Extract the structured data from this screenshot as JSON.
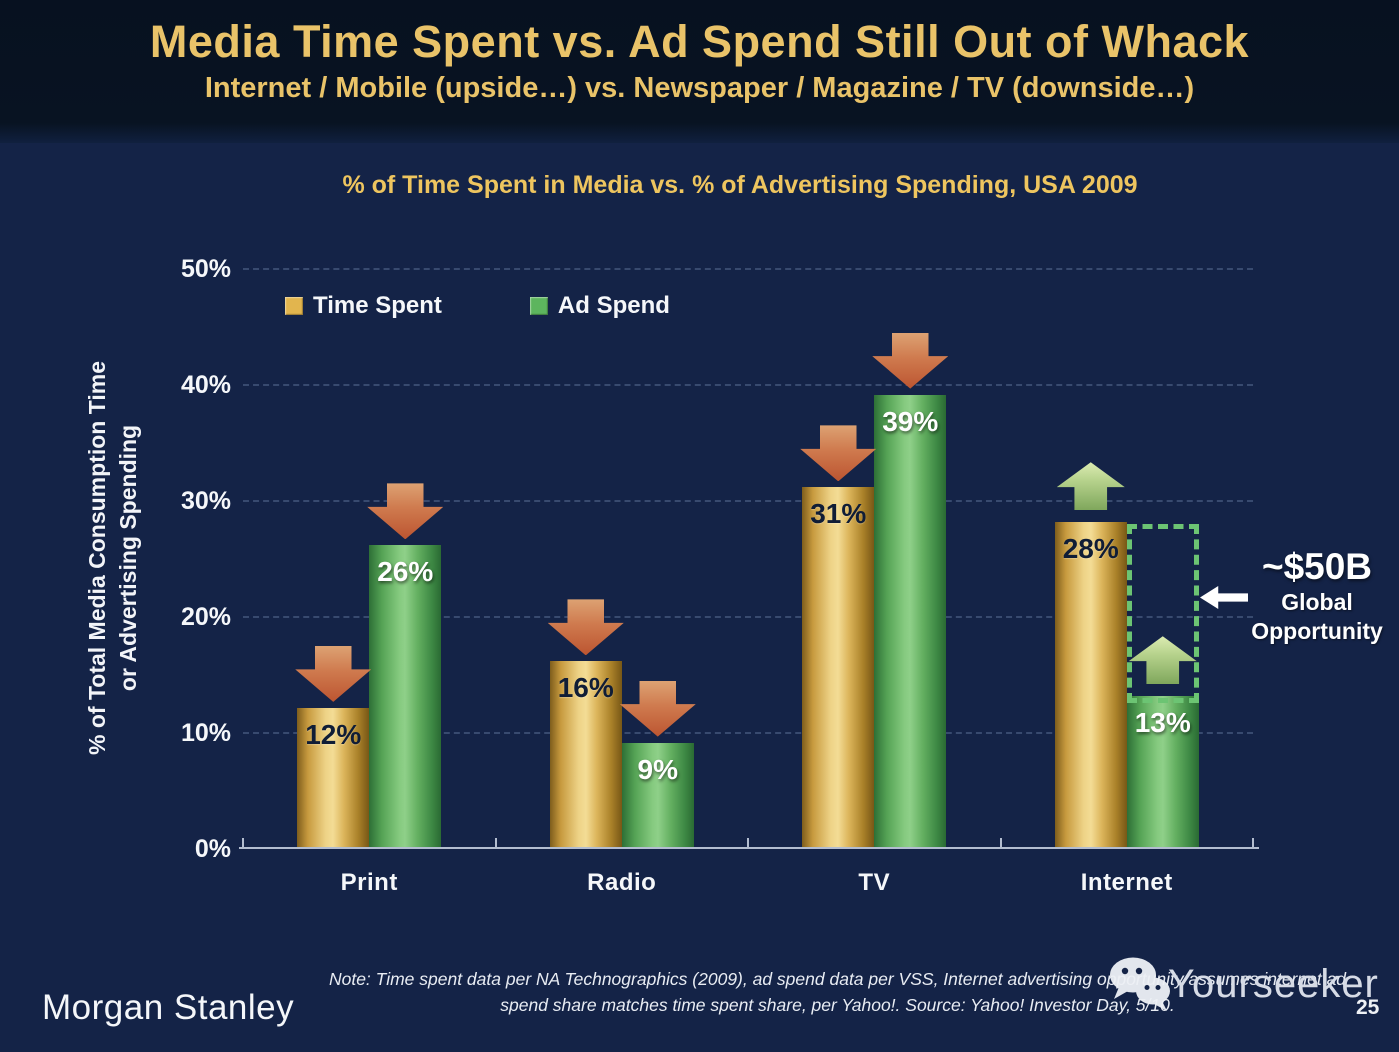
{
  "header": {
    "title": "Media Time Spent vs. Ad Spend Still Out of Whack",
    "subtitle": "Internet / Mobile (upside…) vs. Newspaper / Magazine / TV (downside…)"
  },
  "chart_data": {
    "type": "bar",
    "title": "% of Time Spent in Media vs. % of Advertising Spending, USA 2009",
    "categories": [
      "Print",
      "Radio",
      "TV",
      "Internet"
    ],
    "series": [
      {
        "name": "Time Spent",
        "color": "#e2b54e",
        "values": [
          12,
          16,
          31,
          28
        ]
      },
      {
        "name": "Ad Spend",
        "color": "#5db55e",
        "values": [
          26,
          9,
          39,
          13
        ]
      }
    ],
    "ylabel": "% of Total Media Consumption Time or Advertising Spending",
    "ylabel_lines": [
      "% of Total Media Consumption Time",
      "or Advertising Spending"
    ],
    "ylim": [
      0,
      50
    ],
    "yticks": [
      0,
      10,
      20,
      30,
      40,
      50
    ],
    "grid": "dashed horizontal",
    "legend_position": "upper-left inside plot",
    "value_label_format": "percent",
    "arrow_colors": {
      "down": "#c76743",
      "up": "#a9c87e"
    },
    "arrows": [
      {
        "category": "Print",
        "series": "Time Spent",
        "direction": "down"
      },
      {
        "category": "Print",
        "series": "Ad Spend",
        "direction": "down"
      },
      {
        "category": "Radio",
        "series": "Time Spent",
        "direction": "down"
      },
      {
        "category": "Radio",
        "series": "Ad Spend",
        "direction": "down"
      },
      {
        "category": "TV",
        "series": "Time Spent",
        "direction": "down"
      },
      {
        "category": "TV",
        "series": "Ad Spend",
        "direction": "down"
      },
      {
        "category": "Internet",
        "series": "Time Spent",
        "direction": "up"
      },
      {
        "category": "Internet",
        "series": "Ad Spend",
        "direction": "up"
      }
    ],
    "opportunity": {
      "value": "~$50B",
      "lines": [
        "Global",
        "Opportunity"
      ],
      "category": "Internet",
      "from_pct": 28,
      "to_pct": 13,
      "border_color": "#6cc473"
    }
  },
  "footer": {
    "logo": "Morgan Stanley",
    "note_line1": "Note: Time spent data per NA Technographics (2009), ad spend data per VSS, Internet advertising opportunity assumes internet ad",
    "note_line2": "spend share matches time spent share, per Yahoo!. Source: Yahoo! Investor Day, 5/10.",
    "watermark": "Yourseeker",
    "page_number": "25"
  }
}
